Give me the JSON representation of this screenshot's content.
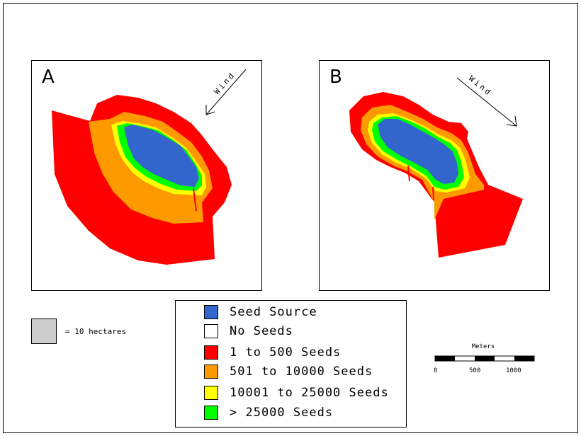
{
  "panels": {
    "a": {
      "label": "A",
      "wind_label": "Wind"
    },
    "b": {
      "label": "B",
      "wind_label": "Wind"
    }
  },
  "legend": {
    "items": [
      {
        "label": "Seed Source",
        "color": "#3366cc"
      },
      {
        "label": "No Seeds",
        "color": "#ffffff"
      },
      {
        "label": "1 to 500 Seeds",
        "color": "#ff0000"
      },
      {
        "label": "501 to 10000 Seeds",
        "color": "#ff9900"
      },
      {
        "label": "10001 to 25000 Seeds",
        "color": "#ffff00"
      },
      {
        "label": "> 25000 Seeds",
        "color": "#00ff00"
      }
    ]
  },
  "area_key": {
    "label": "= 10 hectares",
    "color": "#cccccc"
  },
  "scale": {
    "title": "Meters",
    "ticks": [
      "0",
      "500",
      "1000"
    ]
  }
}
